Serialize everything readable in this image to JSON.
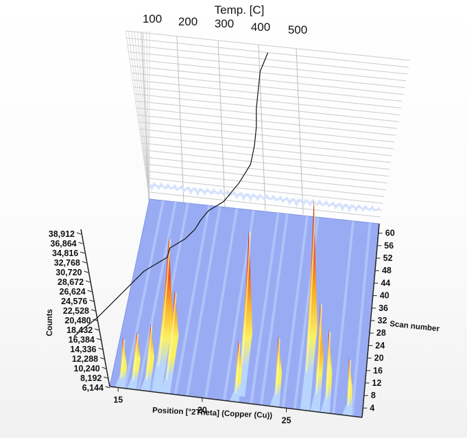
{
  "chart_data": {
    "type": "surface-3d",
    "title": "",
    "xlabel": "Position [°2Theta] (Copper (Cu))",
    "ylabel": "Counts",
    "zlabel": "Scan number",
    "temp_axis_label": "Temp. [C]",
    "x_ticks": [
      "15",
      "20",
      "25"
    ],
    "y_ticks": [
      "6,144",
      "8,192",
      "10,240",
      "12,288",
      "14,336",
      "16,384",
      "18,432",
      "20,480",
      "22,528",
      "24,576",
      "26,624",
      "28,672",
      "30,720",
      "32,768",
      "34,816",
      "36,864",
      "38,912"
    ],
    "z_ticks": [
      "4",
      "8",
      "12",
      "16",
      "20",
      "24",
      "28",
      "32",
      "36",
      "40",
      "44",
      "48",
      "52",
      "56",
      "60"
    ],
    "temp_ticks": [
      "100",
      "200",
      "300",
      "400",
      "500"
    ],
    "xlim": [
      14.5,
      29.5
    ],
    "zlim": [
      1,
      63
    ],
    "ylim": [
      0,
      40000
    ],
    "grid": true,
    "colorscale": [
      "#b9d7ff",
      "#fff45a",
      "#ffb21c",
      "#f05012",
      "#c11e2a",
      "#6a1f7f"
    ],
    "peaks": [
      {
        "x": 15.1,
        "z_start": 1,
        "z_end": 6,
        "counts": 12000
      },
      {
        "x": 15.8,
        "z_start": 1,
        "z_end": 9,
        "counts": 11000
      },
      {
        "x": 16.6,
        "z_start": 1,
        "z_end": 10,
        "counts": 13000
      },
      {
        "x": 17.3,
        "z_start": 1,
        "z_end": 22,
        "counts": 28000
      },
      {
        "x": 17.8,
        "z_start": 1,
        "z_end": 18,
        "counts": 16000
      },
      {
        "x": 21.9,
        "z_start": 1,
        "z_end": 10,
        "counts": 11000
      },
      {
        "x": 22.2,
        "z_start": 3,
        "z_end": 22,
        "counts": 33000
      },
      {
        "x": 24.3,
        "z_start": 1,
        "z_end": 10,
        "counts": 14000
      },
      {
        "x": 26.1,
        "z_start": 1,
        "z_end": 26,
        "counts": 40000
      },
      {
        "x": 26.7,
        "z_start": 1,
        "z_end": 16,
        "counts": 20000
      },
      {
        "x": 27.3,
        "z_start": 1,
        "z_end": 12,
        "counts": 16000
      },
      {
        "x": 28.6,
        "z_start": 1,
        "z_end": 8,
        "counts": 12000
      }
    ],
    "temperature_profile": {
      "scan": [
        1,
        5,
        10,
        15,
        18,
        20,
        22,
        24,
        26,
        28,
        30,
        34,
        38,
        42,
        46,
        50,
        54,
        58,
        62
      ],
      "temp_C": [
        30,
        80,
        130,
        180,
        230,
        280,
        320,
        345,
        360,
        380,
        420,
        460,
        490,
        500,
        505,
        505,
        510,
        515,
        535
      ]
    }
  }
}
